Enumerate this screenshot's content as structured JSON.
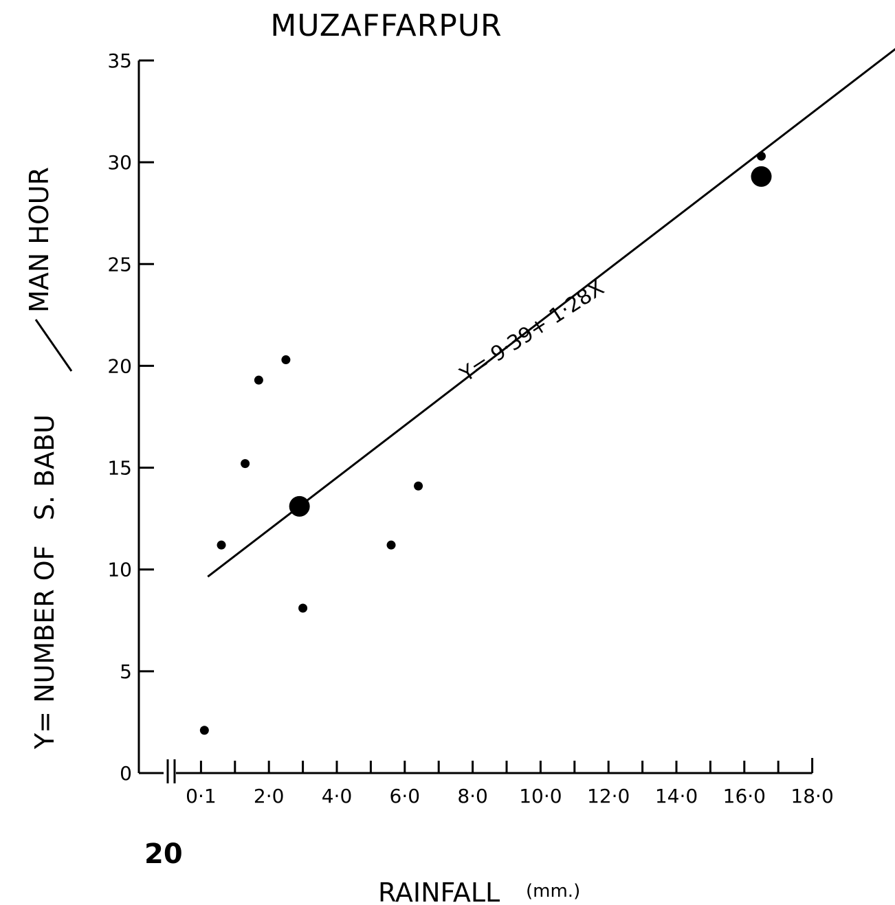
{
  "chart_data": {
    "type": "scatter",
    "title": "MUZAFFARPUR",
    "xlabel": "RAINFALL",
    "xlabel_unit": "(mm.)",
    "ylabel_part1": "Y= NUMBER OF   S. BABU",
    "ylabel_part2": "MAN HOUR",
    "figure_number": "20",
    "regression_label": "Y= 9·39+ 1·28X",
    "regression": {
      "intercept": 9.39,
      "slope": 1.28
    },
    "xlim": [
      0,
      18.5
    ],
    "ylim": [
      0,
      35
    ],
    "x_ticks": [
      1,
      2,
      3,
      4,
      5,
      6,
      7,
      8,
      9,
      10,
      11,
      12,
      13,
      14,
      15,
      16,
      17,
      18
    ],
    "x_tick_labels": [
      {
        "x": 1,
        "label": "0·1"
      },
      {
        "x": 3,
        "label": "2·0"
      },
      {
        "x": 5,
        "label": "4·0"
      },
      {
        "x": 7,
        "label": "6·0"
      },
      {
        "x": 9,
        "label": "8·0"
      },
      {
        "x": 11,
        "label": "10·0"
      },
      {
        "x": 13,
        "label": "12·0"
      },
      {
        "x": 15,
        "label": "14·0"
      },
      {
        "x": 17,
        "label": "16·0"
      },
      {
        "x": 19,
        "label": "18·0"
      }
    ],
    "y_ticks": [
      0,
      5,
      10,
      15,
      20,
      25,
      30,
      35
    ],
    "points": [
      {
        "x": 2.1,
        "y": 2.1,
        "size": "small"
      },
      {
        "x": 2.6,
        "y": 11.2,
        "size": "small"
      },
      {
        "x": 3.3,
        "y": 15.2,
        "size": "small"
      },
      {
        "x": 3.7,
        "y": 19.3,
        "size": "small"
      },
      {
        "x": 4.5,
        "y": 20.3,
        "size": "small"
      },
      {
        "x": 4.9,
        "y": 13.1,
        "size": "large"
      },
      {
        "x": 5.0,
        "y": 8.1,
        "size": "small"
      },
      {
        "x": 7.6,
        "y": 11.2,
        "size": "small"
      },
      {
        "x": 8.4,
        "y": 14.1,
        "size": "small"
      },
      {
        "x": 18.5,
        "y": 30.3,
        "size": "small"
      },
      {
        "x": 18.5,
        "y": 29.3,
        "size": "large"
      }
    ],
    "line_x_range": [
      1.2,
      21.5
    ],
    "grid": false,
    "legend": "none"
  }
}
